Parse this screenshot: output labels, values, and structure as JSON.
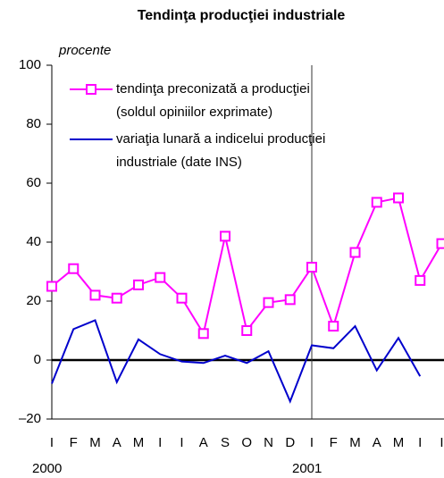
{
  "chart_data": {
    "type": "line",
    "title": "Tendinţa producţiei industriale",
    "y_label": "procente",
    "categories": [
      "I",
      "F",
      "M",
      "A",
      "M",
      "I",
      "I",
      "A",
      "S",
      "O",
      "N",
      "D",
      "I",
      "F",
      "M",
      "A",
      "M",
      "I",
      "I"
    ],
    "x_groups": [
      {
        "label": "2000",
        "index": 0
      },
      {
        "label": "2001",
        "index": 12
      }
    ],
    "series": [
      {
        "name": "tendinţa preconizată a producţiei\n(soldul opiniilor exprimate)",
        "color": "#ff00ff",
        "marker": "square",
        "values": [
          25,
          31,
          22,
          21,
          25.5,
          28,
          21,
          9,
          42,
          10,
          19.5,
          20.5,
          31.5,
          11.5,
          36.5,
          53.5,
          55,
          27,
          39.5
        ]
      },
      {
        "name": "variaţia lunară a indicelui producţiei\nindustriale (date INS)",
        "color": "#0000cc",
        "marker": "none",
        "values": [
          -8,
          10.5,
          13.5,
          -7.5,
          7,
          2,
          -0.5,
          -1,
          1.5,
          -1,
          3,
          -14,
          5,
          4,
          11.5,
          -3.5,
          7.5,
          -5.5,
          null
        ]
      }
    ],
    "ylim": [
      -20,
      100
    ],
    "yticks": [
      {
        "value": -20,
        "label": "–20"
      },
      0,
      20,
      40,
      60,
      80,
      100
    ],
    "legend": "upper left"
  }
}
